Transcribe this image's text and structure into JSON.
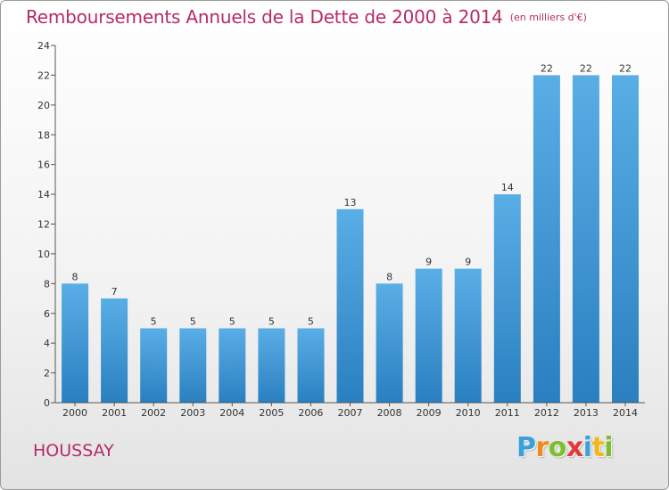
{
  "header": {
    "title": "Remboursements Annuels de la Dette de 2000 à 2014",
    "unit": "(en milliers d'€)"
  },
  "footer": {
    "commune": "HOUSSAY",
    "logo": {
      "letters": [
        "P",
        "r",
        "o",
        "x",
        "i",
        "t",
        "i"
      ],
      "colors": [
        "#3aa0d8",
        "#ef8a1c",
        "#7cbf2c",
        "#e23a3a",
        "#3aa0d8",
        "#f0b81c",
        "#7cbf2c"
      ]
    }
  },
  "chart_data": {
    "type": "bar",
    "categories": [
      "2000",
      "2001",
      "2002",
      "2003",
      "2004",
      "2005",
      "2006",
      "2007",
      "2008",
      "2009",
      "2010",
      "2011",
      "2012",
      "2013",
      "2014"
    ],
    "values": [
      8,
      7,
      5,
      5,
      5,
      5,
      5,
      13,
      8,
      9,
      9,
      14,
      22,
      22,
      22
    ],
    "title": "Remboursements Annuels de la Dette de 2000 à 2014",
    "xlabel": "",
    "ylabel": "",
    "ylim": [
      0,
      24
    ],
    "yticks": [
      0,
      2,
      4,
      6,
      8,
      10,
      12,
      14,
      16,
      18,
      20,
      22,
      24
    ],
    "grid": false,
    "legend": "none",
    "bar_color_top": "#5aaee6",
    "bar_color_bottom": "#2a7fc0"
  }
}
